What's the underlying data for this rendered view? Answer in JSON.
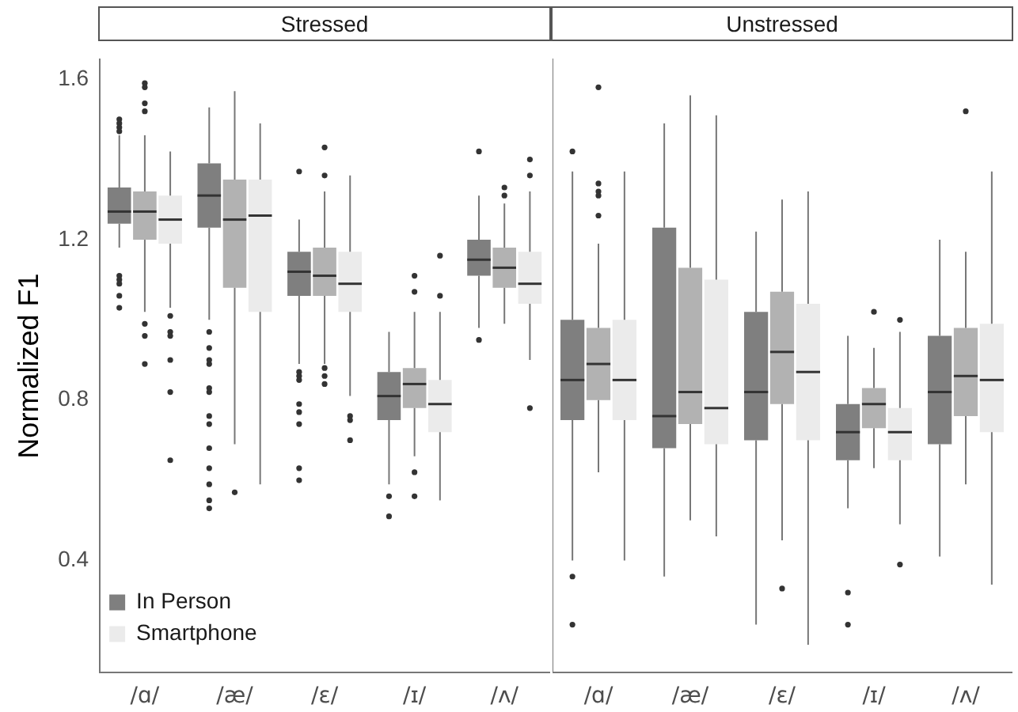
{
  "chart_data": [
    {
      "type": "box",
      "title": "Stressed",
      "ylabel": "Normalized F1",
      "categories": [
        "/ɑ/",
        "/æ/",
        "/ɛ/",
        "/ɪ/",
        "/ʌ/"
      ],
      "ylim": [
        0.12,
        1.65
      ],
      "yticks": [
        0.4,
        0.8,
        1.2,
        1.6
      ],
      "grid": false,
      "legend": "bottom left",
      "series": [
        {
          "name": "In Person",
          "color": "#7f7f7f",
          "boxes": [
            {
              "low": 1.18,
              "q1": 1.24,
              "median": 1.27,
              "q3": 1.33,
              "high": 1.46,
              "outliers": [
                1.5,
                1.49,
                1.48,
                1.47,
                1.11,
                1.1,
                1.09,
                1.06,
                1.03
              ]
            },
            {
              "low": 1.0,
              "q1": 1.23,
              "median": 1.31,
              "q3": 1.39,
              "high": 1.53,
              "outliers": [
                0.97,
                0.93,
                0.9,
                0.89,
                0.83,
                0.82,
                0.76,
                0.74,
                0.68,
                0.63,
                0.59,
                0.55,
                0.53
              ]
            },
            {
              "low": 0.89,
              "q1": 1.06,
              "median": 1.12,
              "q3": 1.17,
              "high": 1.25,
              "outliers": [
                1.37,
                0.87,
                0.86,
                0.85,
                0.79,
                0.77,
                0.74,
                0.63,
                0.6
              ]
            },
            {
              "low": 0.59,
              "q1": 0.75,
              "median": 0.81,
              "q3": 0.87,
              "high": 0.97,
              "outliers": [
                0.56,
                0.51
              ]
            },
            {
              "low": 0.98,
              "q1": 1.11,
              "median": 1.15,
              "q3": 1.2,
              "high": 1.31,
              "outliers": [
                1.42,
                0.95
              ]
            }
          ]
        },
        {
          "color": "#b2b2b2",
          "boxes": [
            {
              "low": 1.02,
              "q1": 1.2,
              "median": 1.27,
              "q3": 1.32,
              "high": 1.46,
              "outliers": [
                1.59,
                1.58,
                1.54,
                1.52,
                0.99,
                0.96,
                0.89
              ]
            },
            {
              "low": 0.69,
              "q1": 1.08,
              "median": 1.25,
              "q3": 1.35,
              "high": 1.57,
              "outliers": [
                0.57
              ]
            },
            {
              "low": 0.89,
              "q1": 1.06,
              "median": 1.11,
              "q3": 1.18,
              "high": 1.32,
              "outliers": [
                1.43,
                1.36,
                0.88,
                0.86,
                0.84
              ]
            },
            {
              "low": 0.66,
              "q1": 0.78,
              "median": 0.84,
              "q3": 0.88,
              "high": 1.02,
              "outliers": [
                1.11,
                1.07,
                0.62,
                0.56
              ]
            },
            {
              "low": 0.99,
              "q1": 1.08,
              "median": 1.13,
              "q3": 1.18,
              "high": 1.29,
              "outliers": [
                1.33,
                1.31
              ]
            }
          ]
        },
        {
          "name": "Smartphone",
          "color": "#ebebeb",
          "boxes": [
            {
              "low": 1.03,
              "q1": 1.19,
              "median": 1.25,
              "q3": 1.31,
              "high": 1.42,
              "outliers": [
                1.01,
                0.97,
                0.96,
                0.9,
                0.82,
                0.65
              ]
            },
            {
              "low": 0.59,
              "q1": 1.02,
              "median": 1.26,
              "q3": 1.35,
              "high": 1.49
            },
            {
              "low": 0.81,
              "q1": 1.02,
              "median": 1.09,
              "q3": 1.17,
              "high": 1.36,
              "outliers": [
                0.76,
                0.75,
                0.7
              ]
            },
            {
              "low": 0.55,
              "q1": 0.72,
              "median": 0.79,
              "q3": 0.85,
              "high": 1.02,
              "outliers": [
                1.16,
                1.06
              ]
            },
            {
              "low": 0.9,
              "q1": 1.04,
              "median": 1.09,
              "q3": 1.17,
              "high": 1.32,
              "outliers": [
                1.4,
                1.36,
                0.78
              ]
            }
          ]
        }
      ]
    },
    {
      "type": "box",
      "title": "Unstressed",
      "categories": [
        "/ɑ/",
        "/æ/",
        "/ɛ/",
        "/ɪ/",
        "/ʌ/"
      ],
      "ylim": [
        0.12,
        1.65
      ],
      "yticks": [
        0.4,
        0.8,
        1.2,
        1.6
      ],
      "grid": false,
      "tick_labels": "x",
      "series": [
        {
          "color": "#7f7f7f",
          "boxes": [
            {
              "low": 0.4,
              "q1": 0.75,
              "median": 0.85,
              "q3": 1.0,
              "high": 1.37,
              "outliers": [
                1.42,
                0.36,
                0.24
              ]
            },
            {
              "low": 0.36,
              "q1": 0.68,
              "median": 0.76,
              "q3": 1.23,
              "high": 1.49
            },
            {
              "low": 0.24,
              "q1": 0.7,
              "median": 0.82,
              "q3": 1.02,
              "high": 1.22
            },
            {
              "low": 0.53,
              "q1": 0.65,
              "median": 0.72,
              "q3": 0.79,
              "high": 0.96,
              "outliers": [
                0.32,
                0.24
              ]
            },
            {
              "low": 0.41,
              "q1": 0.69,
              "median": 0.82,
              "q3": 0.96,
              "high": 1.2
            }
          ]
        },
        {
          "color": "#b2b2b2",
          "boxes": [
            {
              "low": 0.62,
              "q1": 0.8,
              "median": 0.89,
              "q3": 0.98,
              "high": 1.19,
              "outliers": [
                1.58,
                1.34,
                1.32,
                1.31,
                1.26
              ]
            },
            {
              "low": 0.5,
              "q1": 0.74,
              "median": 0.82,
              "q3": 1.13,
              "high": 1.56
            },
            {
              "low": 0.45,
              "q1": 0.79,
              "median": 0.92,
              "q3": 1.07,
              "high": 1.3,
              "outliers": [
                0.33
              ]
            },
            {
              "low": 0.63,
              "q1": 0.73,
              "median": 0.79,
              "q3": 0.83,
              "high": 0.93,
              "outliers": [
                1.02
              ]
            },
            {
              "low": 0.59,
              "q1": 0.76,
              "median": 0.86,
              "q3": 0.98,
              "high": 1.17,
              "outliers": [
                1.52
              ]
            }
          ]
        },
        {
          "color": "#ebebeb",
          "boxes": [
            {
              "low": 0.4,
              "q1": 0.75,
              "median": 0.85,
              "q3": 1.0,
              "high": 1.37
            },
            {
              "low": 0.46,
              "q1": 0.69,
              "median": 0.78,
              "q3": 1.1,
              "high": 1.51
            },
            {
              "low": 0.19,
              "q1": 0.7,
              "median": 0.87,
              "q3": 1.04,
              "high": 1.32
            },
            {
              "low": 0.49,
              "q1": 0.65,
              "median": 0.72,
              "q3": 0.78,
              "high": 0.97,
              "outliers": [
                1.0,
                0.39
              ]
            },
            {
              "low": 0.34,
              "q1": 0.72,
              "median": 0.85,
              "q3": 0.99,
              "high": 1.37
            }
          ]
        }
      ]
    }
  ]
}
